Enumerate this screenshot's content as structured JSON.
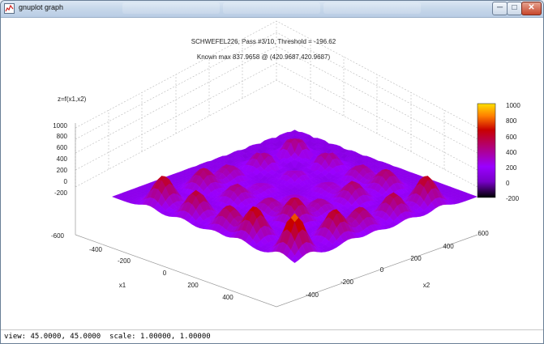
{
  "window": {
    "title": "gnuplot graph",
    "minimize_label": "─",
    "maximize_label": "□",
    "close_label": "✕"
  },
  "plot": {
    "title_line1": "SCHWEFEL226, Pass #3/10, Threshold = -196.62",
    "title_line2": "Known max 837.9658 @ (420.9687,420.9687)",
    "zlabel": "z=f(x1,x2)",
    "xlabel": "x1",
    "ylabel": "x2",
    "z_ticks": [
      "1000",
      "800",
      "600",
      "400",
      "200",
      "0",
      "-200"
    ],
    "x1_ticks": [
      "-600",
      "-400",
      "-200",
      "0",
      "200",
      "400"
    ],
    "x2_ticks": [
      "-400",
      "-200",
      "0",
      "200",
      "400",
      "600"
    ],
    "colorbar_ticks": [
      "1000",
      "800",
      "600",
      "400",
      "200",
      "0",
      "-200"
    ],
    "colors": {
      "palette_low": "#000000",
      "palette_mid_low": "#7800c8",
      "palette_mid": "#9a00ff",
      "palette_mid_high": "#c80000",
      "palette_high": "#ffe000",
      "grid": "#b0b0b0"
    }
  },
  "chart_data": {
    "type": "surface",
    "title": "SCHWEFEL226, Pass #3/10, Threshold = -196.62",
    "subtitle": "Known max 837.9658 @ (420.9687,420.9687)",
    "xlabel": "x1",
    "ylabel": "x2",
    "zlabel": "z=f(x1,x2)",
    "xlim": [
      -600,
      500
    ],
    "ylim": [
      -500,
      600
    ],
    "zlim": [
      -200,
      1000
    ],
    "colorbar_range": [
      -200,
      1000
    ],
    "view": [
      45.0,
      45.0
    ],
    "grid": true,
    "legend": "colorbar-right",
    "peaks": [
      {
        "x1": 420,
        "x2": 420,
        "z": 838
      },
      {
        "x1": -300,
        "x2": 420,
        "z": 650
      },
      {
        "x1": 420,
        "x2": -300,
        "z": 650
      },
      {
        "x1": 200,
        "x2": 420,
        "z": 700
      },
      {
        "x1": 420,
        "x2": 200,
        "z": 650
      },
      {
        "x1": -300,
        "x2": -300,
        "z": 500
      },
      {
        "x1": 200,
        "x2": 200,
        "z": 600
      },
      {
        "x1": -120,
        "x2": 420,
        "z": 600
      },
      {
        "x1": 420,
        "x2": -120,
        "z": 560
      },
      {
        "x1": 60,
        "x2": 420,
        "z": 550
      },
      {
        "x1": 420,
        "x2": 60,
        "z": 520
      },
      {
        "x1": -300,
        "x2": 200,
        "z": 520
      },
      {
        "x1": 200,
        "x2": -300,
        "z": 500
      },
      {
        "x1": -120,
        "x2": -300,
        "z": 450
      },
      {
        "x1": -300,
        "x2": -120,
        "z": 450
      },
      {
        "x1": 200,
        "x2": -120,
        "z": 500
      },
      {
        "x1": -120,
        "x2": 200,
        "z": 450
      },
      {
        "x1": 60,
        "x2": 200,
        "z": 420
      },
      {
        "x1": 200,
        "x2": 60,
        "z": 400
      },
      {
        "x1": 60,
        "x2": -300,
        "z": 420
      },
      {
        "x1": -300,
        "x2": 60,
        "z": 420
      },
      {
        "x1": -120,
        "x2": -120,
        "z": 330
      },
      {
        "x1": 60,
        "x2": 60,
        "z": 300
      },
      {
        "x1": 60,
        "x2": -120,
        "z": 320
      },
      {
        "x1": -120,
        "x2": 60,
        "z": 300
      }
    ],
    "baseline_z": 130
  },
  "status": {
    "text": "view: 45.0000, 45.0000  scale: 1.00000, 1.00000"
  }
}
